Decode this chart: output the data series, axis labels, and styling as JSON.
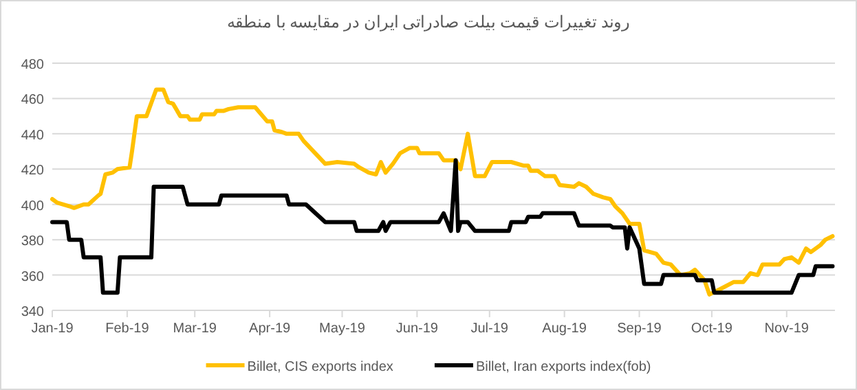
{
  "chart_data": {
    "type": "line",
    "title": "روند تغییرات قیمت بیلت صادراتی ایران در مقایسه با منطقه",
    "xlim": [
      "2019-01-01",
      "2019-11-21"
    ],
    "xticks": [
      {
        "value": "2019-01-01",
        "label": "Jan-19"
      },
      {
        "value": "2019-02-01",
        "label": "Feb-19"
      },
      {
        "value": "2019-03-01",
        "label": "Mar-19"
      },
      {
        "value": "2019-04-01",
        "label": "Apr-19"
      },
      {
        "value": "2019-05-01",
        "label": "May-19"
      },
      {
        "value": "2019-06-01",
        "label": "Jun-19"
      },
      {
        "value": "2019-07-01",
        "label": "Jul-19"
      },
      {
        "value": "2019-08-01",
        "label": "Aug-19"
      },
      {
        "value": "2019-09-01",
        "label": "Sep-19"
      },
      {
        "value": "2019-10-01",
        "label": "Oct-19"
      },
      {
        "value": "2019-11-01",
        "label": "Nov-19"
      }
    ],
    "ylim": [
      340,
      480
    ],
    "yticks": [
      340,
      360,
      380,
      400,
      420,
      440,
      460,
      480
    ],
    "grid": "y",
    "legend": "bottom",
    "marker": "none",
    "line_style": "solid",
    "series": [
      {
        "name": "Billet, CIS exports index",
        "color": "#ffc000",
        "x": [
          "2019-01-01",
          "2019-01-03",
          "2019-01-08",
          "2019-01-10",
          "2019-01-14",
          "2019-01-16",
          "2019-01-20",
          "2019-01-21",
          "2019-01-23",
          "2019-01-26",
          "2019-01-28",
          "2019-02-02",
          "2019-02-03",
          "2019-02-05",
          "2019-02-09",
          "2019-02-13",
          "2019-02-16",
          "2019-02-18",
          "2019-02-20",
          "2019-02-23",
          "2019-02-26",
          "2019-02-27",
          "2019-03-03",
          "2019-03-04",
          "2019-03-09",
          "2019-03-10",
          "2019-03-13",
          "2019-03-15",
          "2019-03-19",
          "2019-03-26",
          "2019-03-31",
          "2019-04-02",
          "2019-04-03",
          "2019-04-06",
          "2019-04-08",
          "2019-04-13",
          "2019-04-15",
          "2019-04-24",
          "2019-04-29",
          "2019-05-06",
          "2019-05-08",
          "2019-05-12",
          "2019-05-15",
          "2019-05-17",
          "2019-05-19",
          "2019-05-22",
          "2019-05-25",
          "2019-05-29",
          "2019-06-01",
          "2019-06-02",
          "2019-06-10",
          "2019-06-12",
          "2019-06-17",
          "2019-06-19",
          "2019-06-22",
          "2019-06-25",
          "2019-06-29",
          "2019-07-02",
          "2019-07-10",
          "2019-07-15",
          "2019-07-17",
          "2019-07-18",
          "2019-07-21",
          "2019-07-24",
          "2019-07-28",
          "2019-07-30",
          "2019-08-05",
          "2019-08-07",
          "2019-08-10",
          "2019-08-13",
          "2019-08-17",
          "2019-08-20",
          "2019-08-22",
          "2019-08-25",
          "2019-08-28",
          "2019-09-01",
          "2019-09-03",
          "2019-09-08",
          "2019-09-11",
          "2019-09-14",
          "2019-09-18",
          "2019-09-22",
          "2019-09-24",
          "2019-09-28",
          "2019-09-30",
          "2019-10-03",
          "2019-10-10",
          "2019-10-14",
          "2019-10-17",
          "2019-10-20",
          "2019-10-22",
          "2019-10-29",
          "2019-10-31",
          "2019-11-03",
          "2019-11-06",
          "2019-11-09",
          "2019-11-11",
          "2019-11-15",
          "2019-11-17",
          "2019-11-20"
        ],
        "values": [
          403,
          401,
          399,
          398,
          400,
          400,
          405,
          406,
          417,
          418,
          420,
          421,
          430,
          450,
          450,
          465,
          465,
          458,
          457,
          450,
          450,
          448,
          448,
          451,
          451,
          453,
          453,
          454,
          455,
          455,
          447,
          447,
          442,
          441,
          440,
          440,
          436,
          423,
          424,
          423,
          421,
          418,
          417,
          424,
          418,
          423,
          429,
          432,
          432,
          429,
          429,
          425,
          425,
          420,
          440,
          416,
          416,
          424,
          424,
          422,
          422,
          419,
          419,
          416,
          416,
          411,
          410,
          412,
          410,
          406,
          404,
          403,
          399,
          395,
          389,
          389,
          374,
          372,
          367,
          366,
          360,
          361,
          363,
          357,
          349,
          351,
          356,
          356,
          361,
          360,
          366,
          366,
          369,
          370,
          367,
          375,
          373,
          377,
          380,
          382
        ]
      },
      {
        "name": "Billet, Iran exports index(fob)",
        "color": "#000000",
        "x": [
          "2019-01-01",
          "2019-01-07",
          "2019-01-08",
          "2019-01-13",
          "2019-01-14",
          "2019-01-21",
          "2019-01-22",
          "2019-01-28",
          "2019-01-29",
          "2019-02-11",
          "2019-02-12",
          "2019-02-24",
          "2019-02-26",
          "2019-03-11",
          "2019-03-12",
          "2019-04-08",
          "2019-04-09",
          "2019-04-16",
          "2019-04-24",
          "2019-05-06",
          "2019-05-07",
          "2019-05-16",
          "2019-05-18",
          "2019-05-19",
          "2019-05-21",
          "2019-06-10",
          "2019-06-12",
          "2019-06-15",
          "2019-06-17",
          "2019-06-18",
          "2019-06-19",
          "2019-06-22",
          "2019-06-25",
          "2019-07-09",
          "2019-07-10",
          "2019-07-16",
          "2019-07-17",
          "2019-07-22",
          "2019-07-23",
          "2019-08-05",
          "2019-08-07",
          "2019-08-20",
          "2019-08-21",
          "2019-08-26",
          "2019-08-27",
          "2019-08-28",
          "2019-09-01",
          "2019-09-03",
          "2019-09-10",
          "2019-09-11",
          "2019-09-24",
          "2019-09-25",
          "2019-10-01",
          "2019-10-02",
          "2019-11-03",
          "2019-11-06",
          "2019-11-12",
          "2019-11-13",
          "2019-11-20"
        ],
        "values": [
          390,
          390,
          380,
          380,
          370,
          370,
          350,
          350,
          370,
          370,
          410,
          410,
          400,
          400,
          405,
          405,
          400,
          400,
          390,
          390,
          385,
          385,
          390,
          385,
          390,
          390,
          395,
          385,
          425,
          385,
          390,
          390,
          385,
          385,
          390,
          390,
          393,
          393,
          395,
          395,
          388,
          388,
          387,
          387,
          375,
          387,
          375,
          355,
          355,
          360,
          360,
          357,
          357,
          350,
          350,
          360,
          360,
          365,
          365
        ]
      }
    ]
  }
}
